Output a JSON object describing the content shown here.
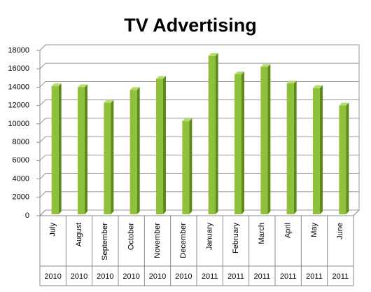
{
  "chart_data": {
    "type": "bar3d",
    "title": "TV Advertising",
    "categories": [
      "July",
      "August",
      "September",
      "October",
      "November",
      "December",
      "January",
      "February",
      "March",
      "April",
      "May",
      "June"
    ],
    "category_groups": [
      "2010",
      "2010",
      "2010",
      "2010",
      "2010",
      "2010",
      "2011",
      "2011",
      "2011",
      "2011",
      "2011",
      "2011"
    ],
    "values": [
      14100,
      14000,
      12300,
      13700,
      14900,
      10300,
      17400,
      15400,
      16200,
      14400,
      13900,
      12000
    ],
    "color": "#8fc23a",
    "ylim": [
      0,
      18000
    ],
    "yticks": [
      0,
      2000,
      4000,
      6000,
      8000,
      10000,
      12000,
      14000,
      16000,
      18000
    ],
    "grid": true
  }
}
